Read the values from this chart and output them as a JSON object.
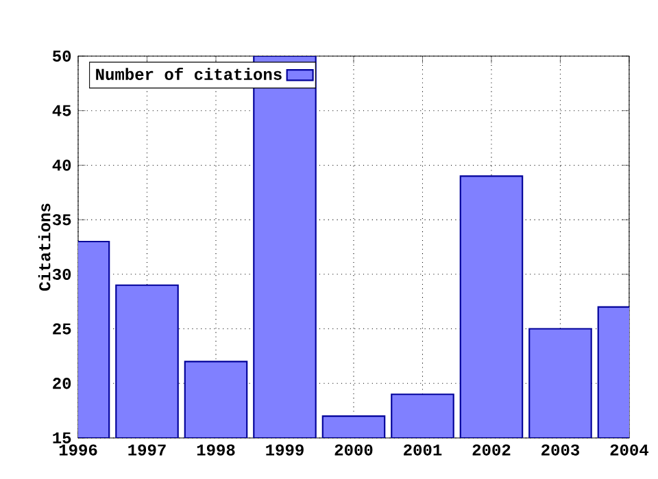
{
  "chart_data": {
    "type": "bar",
    "ylabel": "Citations",
    "x": [
      1996,
      1997,
      1998,
      1999,
      2000,
      2001,
      2002,
      2003,
      2004
    ],
    "series": [
      {
        "name": "Number of citations",
        "color": "#8080ff",
        "values": [
          33,
          29,
          22,
          50,
          17,
          19,
          39,
          25,
          27
        ]
      }
    ],
    "xlim": [
      1996,
      2004
    ],
    "xticks": [
      1996,
      1997,
      1998,
      1999,
      2000,
      2001,
      2002,
      2003,
      2004
    ],
    "ylim": [
      15,
      50
    ],
    "yticks": [
      15,
      20,
      25,
      30,
      35,
      40,
      45,
      50
    ],
    "grid": true,
    "legend": "top left"
  }
}
